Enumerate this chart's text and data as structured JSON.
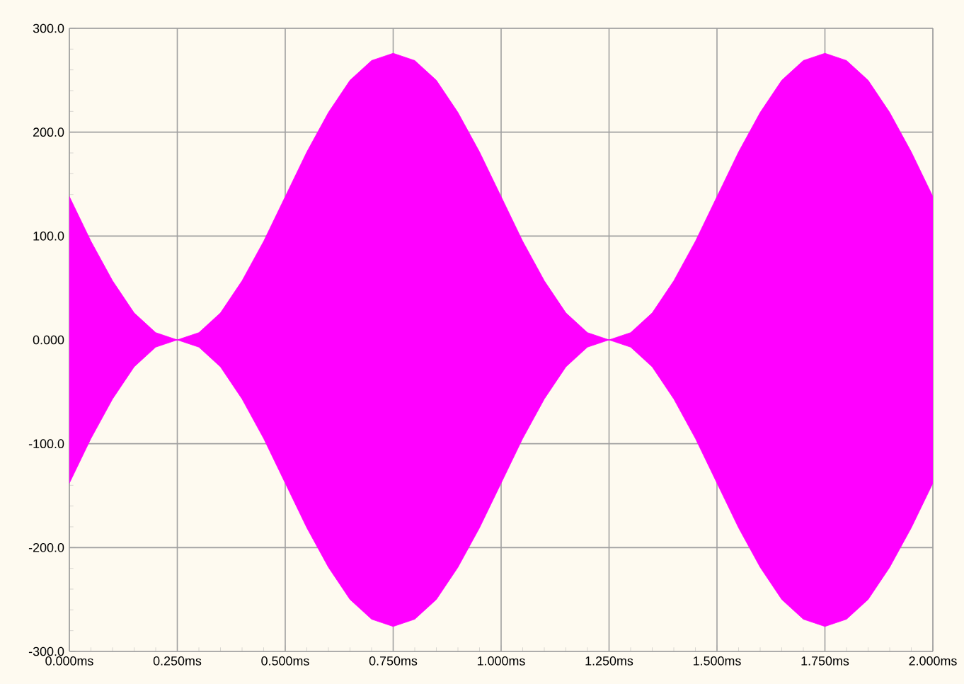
{
  "chart_data": {
    "type": "area",
    "x": [
      0,
      0.05,
      0.1,
      0.15,
      0.2,
      0.25,
      0.3,
      0.35,
      0.4,
      0.45,
      0.5,
      0.55,
      0.6,
      0.65,
      0.7,
      0.75,
      0.8,
      0.85,
      0.9,
      0.95,
      1.0,
      1.05,
      1.1,
      1.15,
      1.2,
      1.25,
      1.3,
      1.35,
      1.4,
      1.45,
      1.5,
      1.55,
      1.6,
      1.65,
      1.7,
      1.75,
      1.8,
      1.85,
      1.9,
      1.95,
      2.0
    ],
    "series": [
      {
        "color": "#ff00ff",
        "values": [
          138,
          95,
          57,
          26,
          7,
          0,
          7,
          26,
          57,
          95,
          138,
          181,
          219,
          250,
          269,
          276,
          269,
          250,
          219,
          181,
          138,
          95,
          57,
          26,
          7,
          0,
          7,
          26,
          57,
          95,
          138,
          181,
          219,
          250,
          269,
          276,
          269,
          250,
          219,
          181,
          138
        ]
      },
      {
        "color": "#ff00ff",
        "values": [
          -138,
          -95,
          -57,
          -26,
          -7,
          0,
          -7,
          -26,
          -57,
          -95,
          -138,
          -181,
          -219,
          -250,
          -269,
          -276,
          -269,
          -250,
          -219,
          -181,
          -138,
          -95,
          -57,
          -26,
          -7,
          0,
          -7,
          -26,
          -57,
          -95,
          -138,
          -181,
          -219,
          -250,
          -269,
          -276,
          -269,
          -250,
          -219,
          -181,
          -138
        ]
      }
    ],
    "xlim": [
      0,
      2
    ],
    "ylim": [
      -300,
      300
    ],
    "xticks": [
      {
        "value": 0,
        "label": "0.000ms"
      },
      {
        "value": 0.25,
        "label": "0.250ms"
      },
      {
        "value": 0.5,
        "label": "0.500ms"
      },
      {
        "value": 0.75,
        "label": "0.750ms"
      },
      {
        "value": 1.0,
        "label": "1.000ms"
      },
      {
        "value": 1.25,
        "label": "1.250ms"
      },
      {
        "value": 1.5,
        "label": "1.500ms"
      },
      {
        "value": 1.75,
        "label": "1.750ms"
      },
      {
        "value": 2.0,
        "label": "2.000ms"
      }
    ],
    "yticks": [
      {
        "value": -300,
        "label": "-300.0"
      },
      {
        "value": -200,
        "label": "-200.0"
      },
      {
        "value": -100,
        "label": "-100.0"
      },
      {
        "value": 0,
        "label": "0.000"
      },
      {
        "value": 100,
        "label": "100.0"
      },
      {
        "value": 200,
        "label": "200.0"
      },
      {
        "value": 300,
        "label": "300.0"
      }
    ],
    "grid": true
  }
}
